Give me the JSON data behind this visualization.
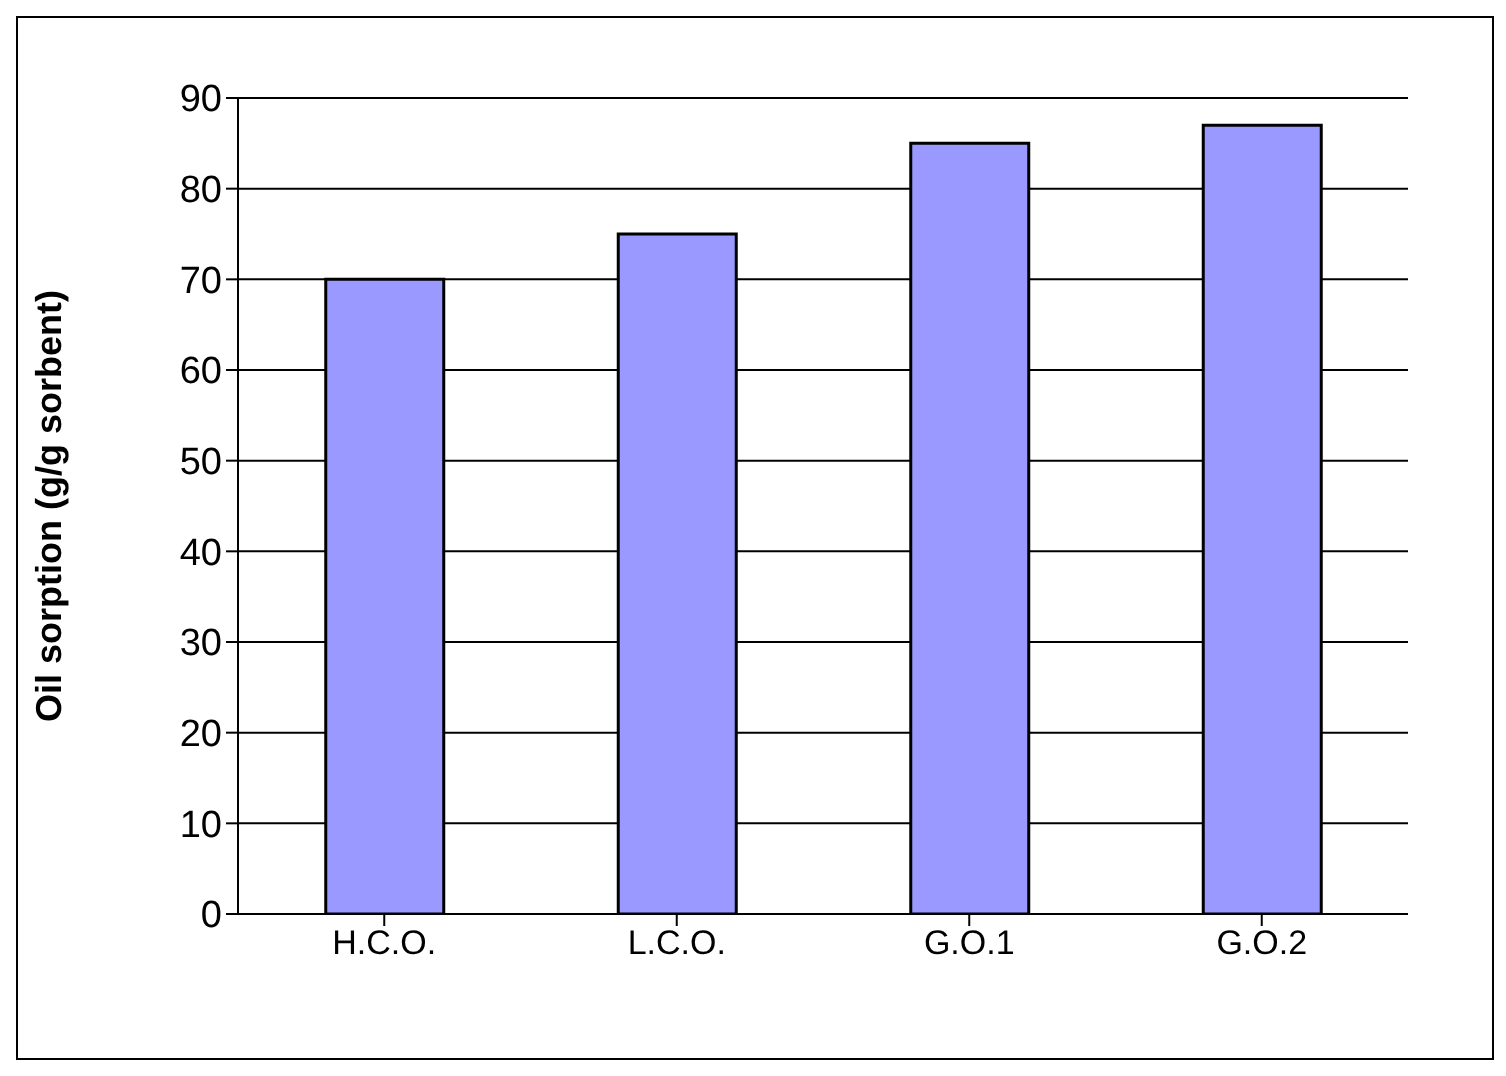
{
  "chart_data": {
    "type": "bar",
    "ylabel": "Oil sorption (g/g sorbent)",
    "categories": [
      "H.C.O.",
      "L.C.O.",
      "G.O.1",
      "G.O.2"
    ],
    "values": [
      70,
      75,
      85,
      87
    ],
    "color": "#9999ff",
    "ylim": [
      0,
      90
    ],
    "yticks": [
      0,
      10,
      20,
      30,
      40,
      50,
      60,
      70,
      80,
      90
    ],
    "grid": "y"
  }
}
